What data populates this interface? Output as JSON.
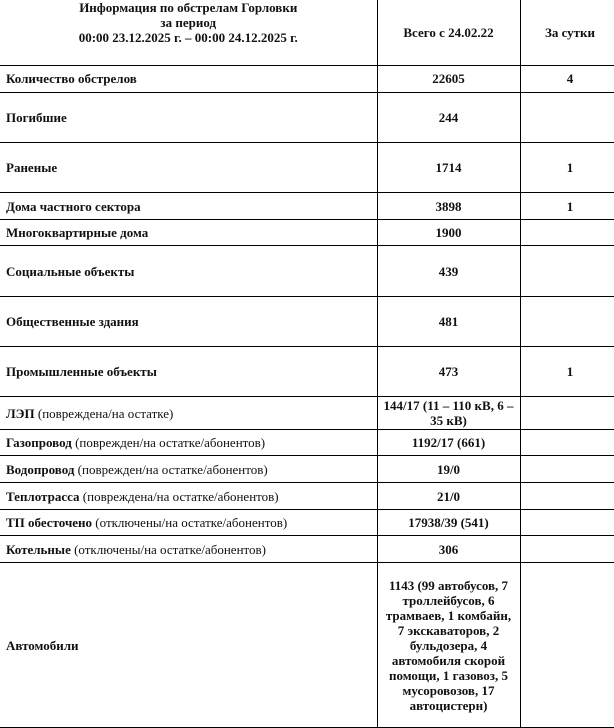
{
  "header": {
    "title_lines": [
      "Информация по обстрелам Горловки",
      "за период",
      "00:00 23.12.2025 г. – 00:00 24.12.2025 г."
    ],
    "col_total": "Всего с 24.02.22",
    "col_day": "За сутки"
  },
  "rows": [
    {
      "label": "Количество обстрелов",
      "note": "",
      "total": "22605",
      "day": "4"
    },
    {
      "label": "Погибшие",
      "note": "",
      "total": "244",
      "day": ""
    },
    {
      "label": "Раненые",
      "note": "",
      "total": "1714",
      "day": "1"
    },
    {
      "label": "Дома частного сектора",
      "note": "",
      "total": "3898",
      "day": "1"
    },
    {
      "label": "Многоквартирные дома",
      "note": "",
      "total": "1900",
      "day": ""
    },
    {
      "label": "Социальные объекты",
      "note": "",
      "total": "439",
      "day": ""
    },
    {
      "label": "Общественные здания",
      "note": "",
      "total": "481",
      "day": ""
    },
    {
      "label": "Промышленные объекты",
      "note": "",
      "total": "473",
      "day": "1"
    },
    {
      "label": "ЛЭП",
      "note": " (повреждена/на остатке)",
      "total": "144/17 (11 – 110 кВ, 6 – 35 кВ)",
      "day": ""
    },
    {
      "label": "Газопровод",
      "note": " (поврежден/на остатке/абонентов)",
      "total": "1192/17 (661)",
      "day": ""
    },
    {
      "label": "Водопровод",
      "note": " (поврежден/на остатке/абонентов)",
      "total": "19/0",
      "day": ""
    },
    {
      "label": "Теплотрасса",
      "note": " (повреждена/на остатке/абонентов)",
      "total": "21/0",
      "day": ""
    },
    {
      "label": "ТП обесточено",
      "note": " (отключены/на остатке/абонентов)",
      "total": "17938/39 (541)",
      "day": ""
    },
    {
      "label": "Котельные",
      "note": " (отключены/на остатке/абонентов)",
      "total": "306",
      "day": ""
    },
    {
      "label": "Автомобили",
      "note": "",
      "total": "1143 (99 автобусов, 7 троллейбусов, 6 трамваев, 1 комбайн, 7 экскаваторов, 2 бульдозера, 4 автомобиля скорой помощи, 1 газовоз, 5 мусоровозов, 17 автоцистерн)",
      "day": ""
    }
  ]
}
